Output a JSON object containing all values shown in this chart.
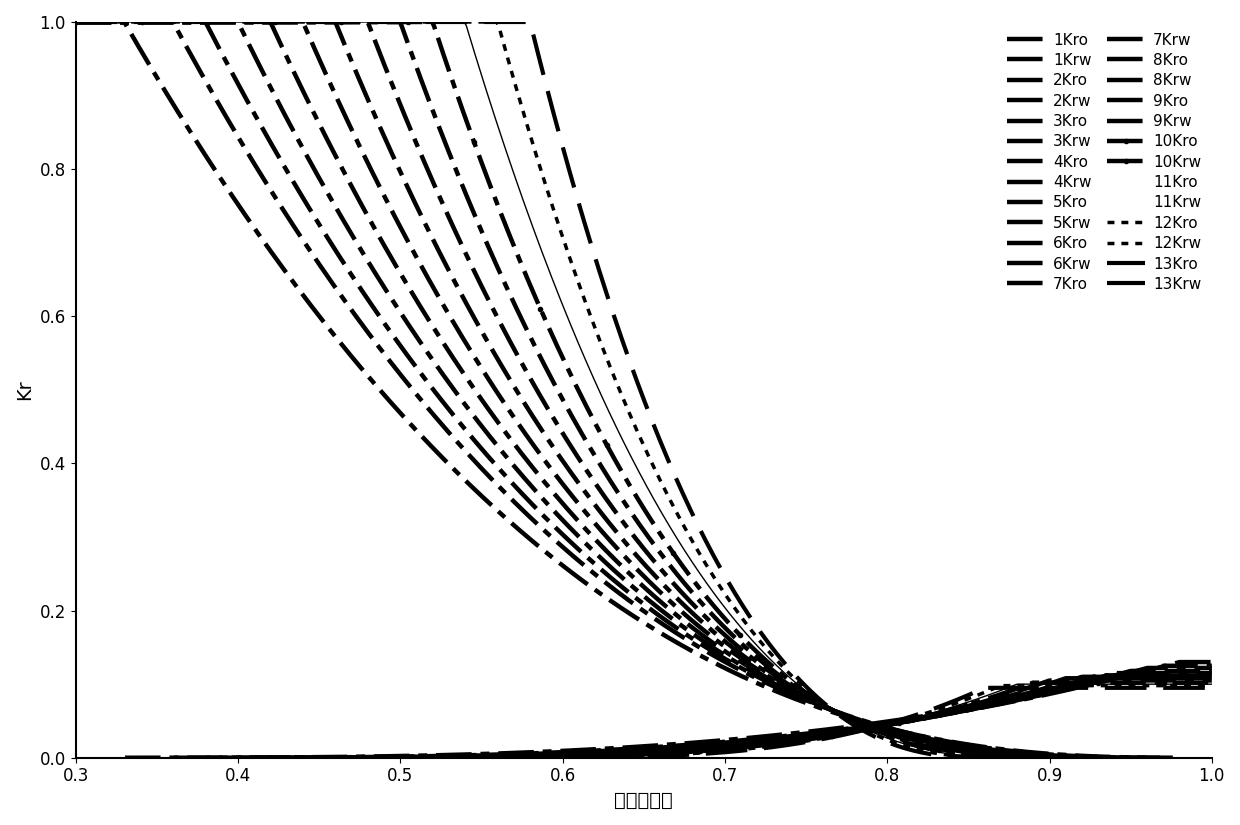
{
  "xlabel": "含水饱和度",
  "ylabel": "Kr",
  "xlim": [
    0.3,
    1.0
  ],
  "ylim": [
    0.0,
    1.0
  ],
  "xticks": [
    0.3,
    0.4,
    0.5,
    0.6,
    0.7,
    0.8,
    0.9,
    1.0
  ],
  "yticks": [
    0.0,
    0.2,
    0.4,
    0.6,
    0.8,
    1.0
  ],
  "n_curves": 13,
  "color": "black",
  "kro_params": [
    {
      "swi": 0.33,
      "sor": 0.02,
      "n": 2.5
    },
    {
      "swi": 0.36,
      "sor": 0.03,
      "n": 2.5
    },
    {
      "swi": 0.38,
      "sor": 0.04,
      "n": 2.5
    },
    {
      "swi": 0.4,
      "sor": 0.05,
      "n": 2.5
    },
    {
      "swi": 0.42,
      "sor": 0.06,
      "n": 2.5
    },
    {
      "swi": 0.44,
      "sor": 0.07,
      "n": 2.5
    },
    {
      "swi": 0.46,
      "sor": 0.08,
      "n": 2.5
    },
    {
      "swi": 0.48,
      "sor": 0.09,
      "n": 2.5
    },
    {
      "swi": 0.5,
      "sor": 0.1,
      "n": 2.5
    },
    {
      "swi": 0.52,
      "sor": 0.11,
      "n": 2.5
    },
    {
      "swi": 0.54,
      "sor": 0.12,
      "n": 2.5
    },
    {
      "swi": 0.56,
      "sor": 0.13,
      "n": 2.5
    },
    {
      "swi": 0.58,
      "sor": 0.14,
      "n": 2.5
    }
  ],
  "krw_params": [
    {
      "swi": 0.33,
      "sor": 0.02,
      "n": 3.0,
      "krw_max": 0.13
    },
    {
      "swi": 0.36,
      "sor": 0.03,
      "n": 3.0,
      "krw_max": 0.125
    },
    {
      "swi": 0.38,
      "sor": 0.04,
      "n": 3.0,
      "krw_max": 0.122
    },
    {
      "swi": 0.4,
      "sor": 0.05,
      "n": 3.0,
      "krw_max": 0.118
    },
    {
      "swi": 0.42,
      "sor": 0.06,
      "n": 3.0,
      "krw_max": 0.115
    },
    {
      "swi": 0.44,
      "sor": 0.07,
      "n": 3.0,
      "krw_max": 0.112
    },
    {
      "swi": 0.46,
      "sor": 0.08,
      "n": 3.0,
      "krw_max": 0.11
    },
    {
      "swi": 0.48,
      "sor": 0.09,
      "n": 3.0,
      "krw_max": 0.108
    },
    {
      "swi": 0.5,
      "sor": 0.1,
      "n": 3.0,
      "krw_max": 0.105
    },
    {
      "swi": 0.52,
      "sor": 0.11,
      "n": 3.0,
      "krw_max": 0.102
    },
    {
      "swi": 0.54,
      "sor": 0.12,
      "n": 3.0,
      "krw_max": 0.1
    },
    {
      "swi": 0.56,
      "sor": 0.13,
      "n": 3.0,
      "krw_max": 0.098
    },
    {
      "swi": 0.58,
      "sor": 0.14,
      "n": 3.0,
      "krw_max": 0.095
    }
  ],
  "legend_fontsize": 11,
  "axis_fontsize": 14,
  "tick_fontsize": 12
}
